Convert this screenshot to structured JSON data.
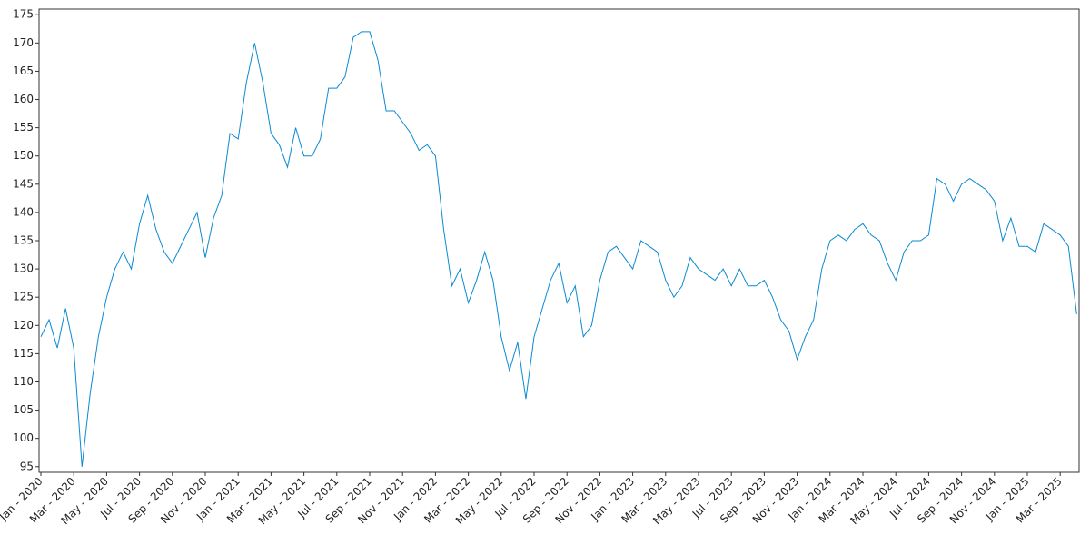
{
  "chart_data": {
    "type": "line",
    "categories": [
      "Jan - 2020",
      null,
      null,
      null,
      "Mar - 2020",
      null,
      null,
      null,
      "May - 2020",
      null,
      null,
      null,
      "Jul - 2020",
      null,
      null,
      null,
      "Sep - 2020",
      null,
      null,
      null,
      "Nov - 2020",
      null,
      null,
      null,
      "Jan - 2021",
      null,
      null,
      null,
      "Mar - 2021",
      null,
      null,
      null,
      "May - 2021",
      null,
      null,
      null,
      "Jul - 2021",
      null,
      null,
      null,
      "Sep - 2021",
      null,
      null,
      null,
      "Nov - 2021",
      null,
      null,
      null,
      "Jan - 2022",
      null,
      null,
      null,
      "Mar - 2022",
      null,
      null,
      null,
      "May - 2022",
      null,
      null,
      null,
      "Jul - 2022",
      null,
      null,
      null,
      "Sep - 2022",
      null,
      null,
      null,
      "Nov - 2022",
      null,
      null,
      null,
      "Jan - 2023",
      null,
      null,
      null,
      "Mar - 2023",
      null,
      null,
      null,
      "May - 2023",
      null,
      null,
      null,
      "Jul - 2023",
      null,
      null,
      null,
      "Sep - 2023",
      null,
      null,
      null,
      "Nov - 2023",
      null,
      null,
      null,
      "Jan - 2024",
      null,
      null,
      null,
      "Mar - 2024",
      null,
      null,
      null,
      "May - 2024",
      null,
      null,
      null,
      "Jul - 2024",
      null,
      null,
      null,
      "Sep - 2024",
      null,
      null,
      null,
      "Nov - 2024",
      null,
      null,
      null,
      "Jan - 2025",
      null,
      null,
      null,
      "Mar - 2025",
      null,
      null
    ],
    "values": [
      118,
      121,
      116,
      123,
      116,
      95,
      108,
      118,
      125,
      130,
      133,
      130,
      138,
      143,
      137,
      133,
      131,
      134,
      137,
      140,
      132,
      139,
      143,
      154,
      153,
      163,
      170,
      163,
      154,
      152,
      148,
      155,
      150,
      150,
      153,
      162,
      162,
      164,
      171,
      172,
      172,
      167,
      158,
      158,
      156,
      154,
      151,
      152,
      150,
      137,
      127,
      130,
      124,
      128,
      133,
      128,
      118,
      112,
      117,
      107,
      118,
      123,
      128,
      131,
      124,
      127,
      118,
      120,
      128,
      133,
      134,
      132,
      130,
      135,
      134,
      133,
      128,
      125,
      127,
      132,
      130,
      129,
      128,
      130,
      127,
      130,
      127,
      127,
      128,
      125,
      121,
      119,
      114,
      118,
      121,
      130,
      135,
      136,
      135,
      137,
      138,
      136,
      135,
      131,
      128,
      133,
      135,
      135,
      136,
      146,
      145,
      142,
      145,
      146,
      145,
      144,
      142,
      135,
      139,
      134,
      134,
      133,
      138,
      137,
      136,
      134,
      122
    ],
    "color": "#0a8ad2",
    "ylim": [
      94,
      176
    ],
    "yticks": [
      95,
      100,
      105,
      110,
      115,
      120,
      125,
      130,
      135,
      140,
      145,
      150,
      155,
      160,
      165,
      170,
      175
    ]
  }
}
